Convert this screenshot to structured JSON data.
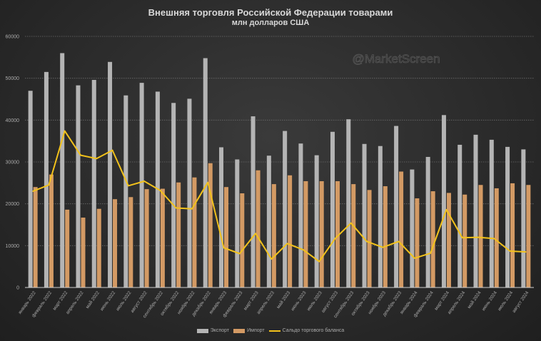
{
  "chart_data": {
    "type": "bar",
    "title": "Внешняя торговля Российской Федерации товарами",
    "subtitle": "млн долларов США",
    "watermark": "@MarketScreen",
    "ylim": [
      0,
      60000
    ],
    "yticks": [
      0,
      10000,
      20000,
      30000,
      40000,
      50000,
      60000
    ],
    "grid": true,
    "legend_position": "bottom",
    "categories": [
      "январь 2022",
      "февраль 2022",
      "март 2022",
      "апрель 2022",
      "май 2022",
      "июнь 2022",
      "июль 2022",
      "август 2022",
      "сентябрь 2022",
      "октябрь 2022",
      "ноябрь 2022",
      "декабрь 2022",
      "январь 2023",
      "февраль 2023",
      "март 2023",
      "апрель 2023",
      "май 2023",
      "июнь 2023",
      "июль 2023",
      "август 2023",
      "сентябрь 2023",
      "октябрь 2023",
      "ноябрь 2023",
      "декабрь 2023",
      "январь 2024",
      "февраль 2024",
      "март 2024",
      "апрель 2024",
      "май 2024",
      "июнь 2024",
      "июль 2024",
      "август 2024"
    ],
    "series": [
      {
        "name": "Экспорт",
        "type": "bar",
        "color": "#b4b4b4",
        "values": [
          47000,
          51500,
          56000,
          48300,
          49600,
          53900,
          45900,
          48900,
          46800,
          44100,
          45100,
          54800,
          33500,
          30600,
          40900,
          31500,
          37400,
          34400,
          31600,
          37200,
          40200,
          34300,
          33800,
          38600,
          28200,
          31200,
          41200,
          34100,
          36500,
          35300,
          33600,
          33000
        ]
      },
      {
        "name": "Импорт",
        "type": "bar",
        "color": "#d39a64",
        "values": [
          24000,
          27000,
          18600,
          16700,
          18800,
          21100,
          21600,
          23500,
          23600,
          25100,
          26300,
          29700,
          24000,
          22500,
          28000,
          24700,
          26800,
          25400,
          25400,
          25400,
          24700,
          23300,
          24200,
          27700,
          21300,
          23000,
          22600,
          22200,
          24500,
          23700,
          24900,
          24500
        ]
      },
      {
        "name": "Сальдо торгового баланса",
        "type": "line",
        "color": "#f2c21b",
        "values": [
          23000,
          24500,
          37400,
          31600,
          30800,
          32800,
          24300,
          25400,
          23200,
          19000,
          18800,
          25100,
          9500,
          8100,
          12900,
          6800,
          10500,
          9000,
          6200,
          11700,
          15400,
          11000,
          9600,
          11000,
          7000,
          8200,
          18600,
          11900,
          12000,
          11700,
          8700,
          8500
        ]
      }
    ]
  }
}
